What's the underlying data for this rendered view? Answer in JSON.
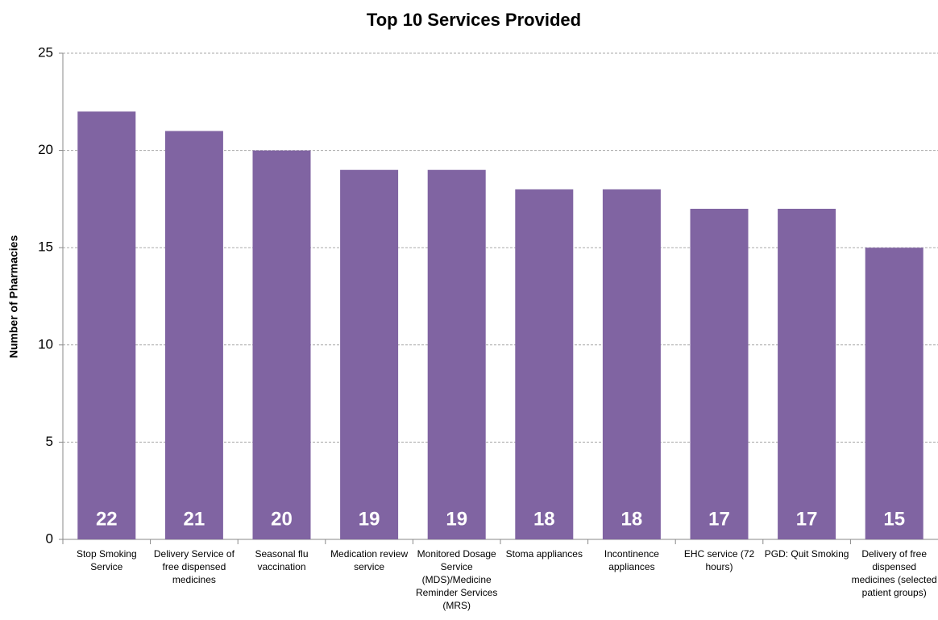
{
  "chart_data": {
    "type": "bar",
    "title": "Top 10 Services Provided",
    "y_label": "Number of Pharmacies",
    "categories": [
      "Stop Smoking Service",
      "Delivery Service of free dispensed medicines",
      "Seasonal flu vaccination",
      "Medication review service",
      "Monitored Dosage Service (MDS)/Medicine Reminder Services (MRS)",
      "Stoma appliances",
      "Incontinence appliances",
      "EHC service (72 hours)",
      "PGD: Quit Smoking",
      "Delivery of free dispensed medicines (selected patient groups)"
    ],
    "values": [
      22,
      21,
      20,
      19,
      19,
      18,
      18,
      17,
      17,
      15
    ],
    "color": "#8064a2",
    "ylim": [
      0,
      25
    ],
    "yticks": [
      0,
      5,
      10,
      15,
      20,
      25
    ],
    "grid": true
  }
}
